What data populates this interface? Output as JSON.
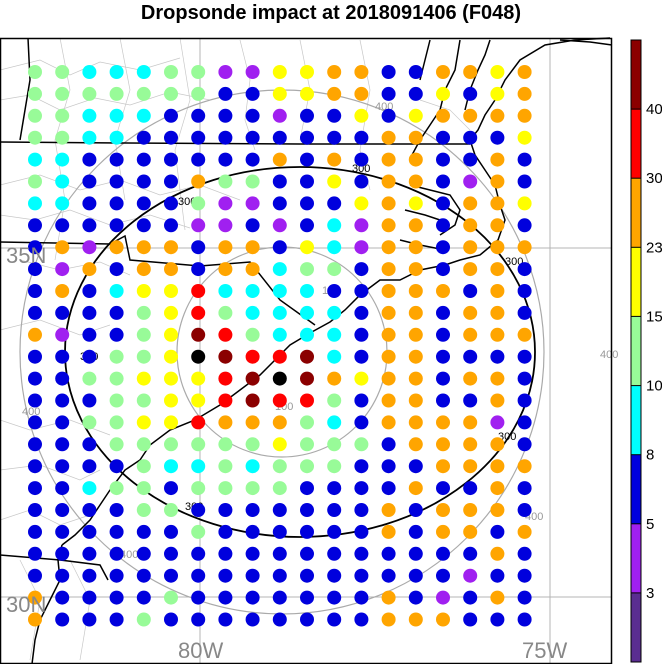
{
  "title": "Dropsonde impact at 2018091406 (F048)",
  "axes": {
    "lat_labels": [
      "35N",
      "30N"
    ],
    "lon_labels": [
      "80W",
      "75W"
    ]
  },
  "colorbar": {
    "boundaries": [
      3,
      5,
      8,
      10,
      15,
      23,
      30,
      40
    ],
    "colors": [
      "#5a2d91",
      "#a020f0",
      "#0000dd",
      "#00ffff",
      "#98fb98",
      "#ffff00",
      "#ffa500",
      "#ff0000",
      "#8b0000"
    ],
    "tick_labels": [
      "40",
      "30",
      "23",
      "15",
      "10",
      "8",
      "5",
      "3"
    ]
  },
  "contours": {
    "gray_levels": [
      "100",
      "400",
      "400",
      "400",
      "400",
      "400",
      "100"
    ],
    "black_levels": [
      "300",
      "300",
      "300",
      "300",
      "300",
      "300"
    ]
  },
  "grid": {
    "rows": [
      "4433344115566226656",
      "4444444225566225256",
      "4433322221225256666",
      "4433222222222662225",
      "3322222226262662262",
      "4322226442252662162",
      "3322224112225652665",
      "2222221121231662662",
      "2616662662531662666",
      "2162662663442662662",
      "2623557333322666262",
      "2222457433332662662",
      "6122458743332662666",
      "2224459877832662222",
      "2244555789865662662",
      "2224455787742662262",
      "2244557666432666612",
      "2224444445444266662",
      "2222433434442226666",
      "2234424444222262262",
      "2222442222222626662",
      "2222224222222626626",
      "2222222222222222262",
      "2222222222222222122",
      "6222242222222621262",
      "6222422222222666222"
    ]
  }
}
